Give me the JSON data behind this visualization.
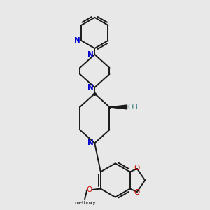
{
  "background_color": "#e8e8e8",
  "bond_color": "#1a1a1a",
  "nitrogen_color": "#0000cc",
  "oxygen_color": "#cc0000",
  "figsize": [
    3.0,
    3.0
  ],
  "dpi": 100,
  "xlim": [
    0,
    10
  ],
  "ylim": [
    0,
    10
  ]
}
